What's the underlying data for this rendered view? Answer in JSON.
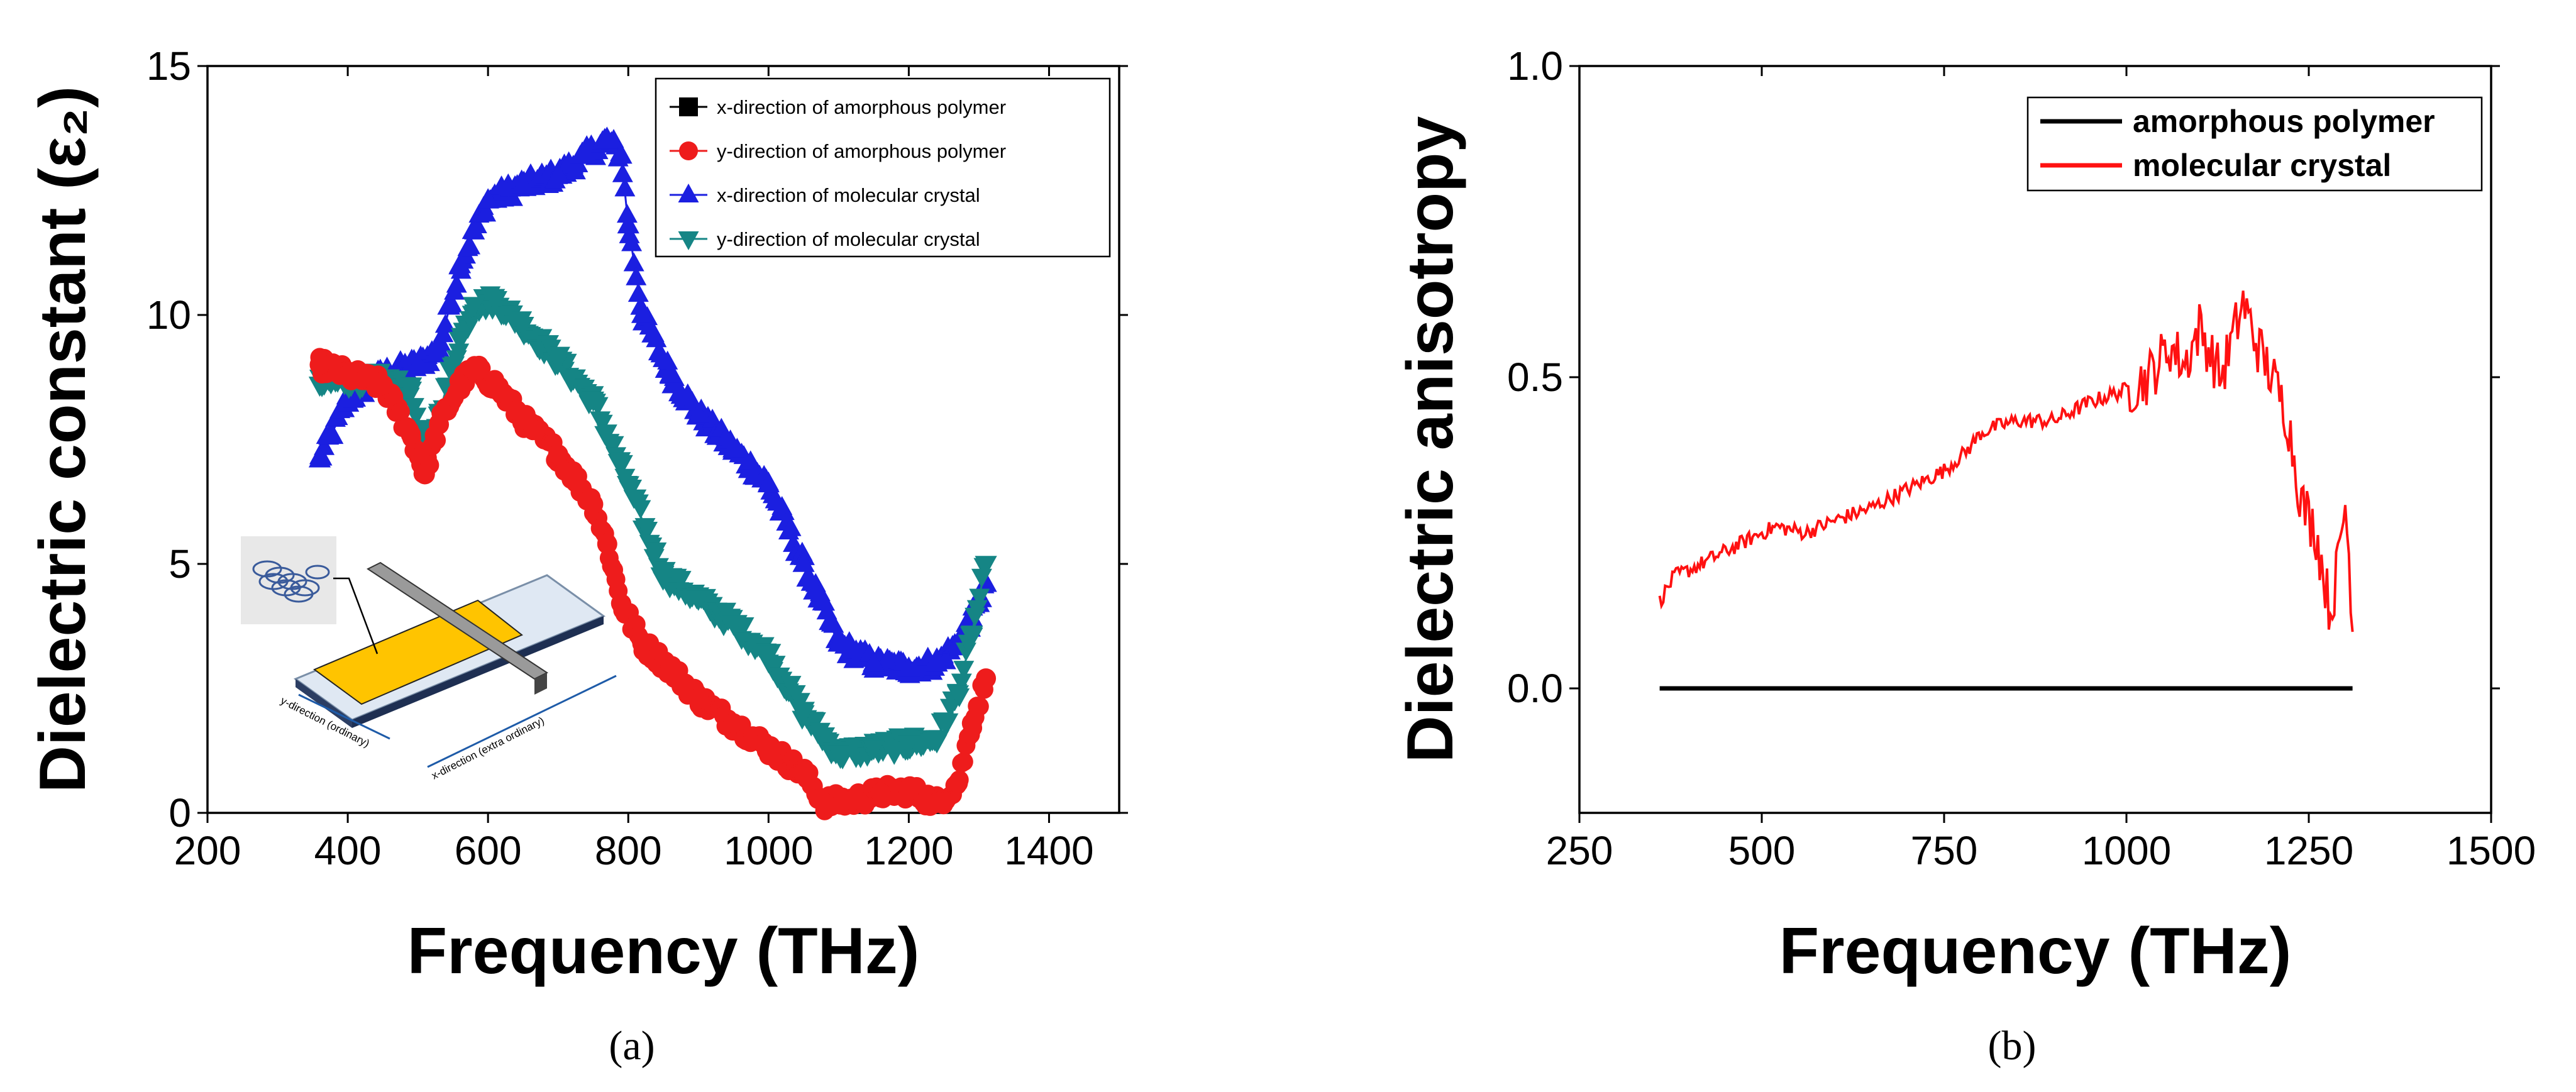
{
  "chart_data": [
    {
      "panel": "a",
      "caption": "(a)",
      "type": "scatter",
      "xlabel": "Frequency (THz)",
      "ylabel": "Dielectric constant (ε₂)",
      "xlim": [
        200,
        1500
      ],
      "ylim": [
        0,
        15
      ],
      "xticks": [
        "200",
        "400",
        "600",
        "800",
        "1000",
        "1200",
        "1400"
      ],
      "yticks": [
        "0",
        "5",
        "10",
        "15"
      ],
      "grid": false,
      "legend_position": "top-right",
      "inset": {
        "kind": "schematic",
        "labels": [
          "y-direction (ordinary)",
          "x-direction (extra ordinary)"
        ]
      },
      "series": [
        {
          "name": "x-direction of amorphous polymer",
          "color": "#000000",
          "marker": "square",
          "x": [],
          "y": []
        },
        {
          "name": "y-direction of amorphous polymer",
          "color": "#ee1c1c",
          "marker": "circle",
          "x": [
            360,
            400,
            450,
            490,
            510,
            530,
            560,
            580,
            610,
            650,
            700,
            750,
            770,
            790,
            820,
            860,
            900,
            950,
            1000,
            1050,
            1080,
            1120,
            1160,
            1200,
            1240,
            1270,
            1290,
            1310
          ],
          "y": [
            9.0,
            8.8,
            8.6,
            7.6,
            6.8,
            7.8,
            8.6,
            8.9,
            8.6,
            7.9,
            7.2,
            6.2,
            5.4,
            4.2,
            3.4,
            2.9,
            2.3,
            1.8,
            1.3,
            0.8,
            0.2,
            0.25,
            0.4,
            0.45,
            0.2,
            0.6,
            1.8,
            2.7
          ]
        },
        {
          "name": "x-direction of molecular crystal",
          "color": "#1b1fe0",
          "marker": "triangle-up",
          "x": [
            360,
            400,
            450,
            500,
            530,
            560,
            600,
            650,
            700,
            740,
            770,
            790,
            800,
            820,
            860,
            900,
            950,
            1000,
            1050,
            1100,
            1150,
            1200,
            1240,
            1270,
            1290,
            1310
          ],
          "y": [
            7.1,
            8.3,
            8.8,
            9.0,
            9.3,
            11.0,
            12.3,
            12.6,
            12.8,
            13.2,
            13.5,
            13.2,
            11.8,
            10.0,
            8.8,
            8.0,
            7.3,
            6.6,
            5.0,
            3.4,
            3.0,
            2.9,
            3.0,
            3.4,
            3.9,
            4.6
          ]
        },
        {
          "name": "y-direction of molecular crystal",
          "color": "#158585",
          "marker": "triangle-down",
          "x": [
            360,
            400,
            450,
            490,
            510,
            530,
            560,
            580,
            610,
            650,
            700,
            750,
            800,
            850,
            900,
            950,
            1000,
            1050,
            1100,
            1150,
            1200,
            1240,
            1270,
            1290,
            1310
          ],
          "y": [
            8.6,
            8.7,
            8.7,
            8.5,
            7.2,
            8.0,
            9.5,
            10.2,
            10.3,
            9.8,
            9.1,
            8.3,
            6.6,
            4.8,
            4.3,
            3.8,
            3.2,
            2.0,
            1.2,
            1.3,
            1.4,
            1.5,
            2.4,
            3.6,
            5.0
          ]
        }
      ]
    },
    {
      "panel": "b",
      "caption": "(b)",
      "type": "line",
      "xlabel": "Frequency (THz)",
      "ylabel": "Dielectric anisotropy",
      "xlim": [
        250,
        1500
      ],
      "ylim": [
        -0.2,
        1.0
      ],
      "xticks": [
        "250",
        "500",
        "750",
        "1000",
        "1250",
        "1500"
      ],
      "yticks": [
        "0.0",
        "0.5",
        "1.0"
      ],
      "grid": false,
      "legend_position": "top-right",
      "series": [
        {
          "name": "amorphous polymer",
          "color": "#000000",
          "x": [
            360,
            1310
          ],
          "y": [
            0.0,
            0.0
          ]
        },
        {
          "name": "molecular crystal",
          "color": "#ff1111",
          "x": [
            360,
            380,
            400,
            450,
            500,
            520,
            560,
            600,
            650,
            700,
            750,
            780,
            800,
            820,
            850,
            900,
            950,
            1000,
            1030,
            1060,
            1080,
            1100,
            1130,
            1160,
            1180,
            1200,
            1220,
            1240,
            1260,
            1280,
            1290,
            1300,
            1310
          ],
          "y": [
            0.14,
            0.18,
            0.19,
            0.22,
            0.25,
            0.26,
            0.25,
            0.27,
            0.29,
            0.32,
            0.35,
            0.38,
            0.41,
            0.42,
            0.43,
            0.43,
            0.46,
            0.48,
            0.5,
            0.55,
            0.52,
            0.58,
            0.5,
            0.62,
            0.55,
            0.5,
            0.44,
            0.3,
            0.25,
            0.12,
            0.2,
            0.3,
            0.12
          ]
        }
      ]
    }
  ]
}
